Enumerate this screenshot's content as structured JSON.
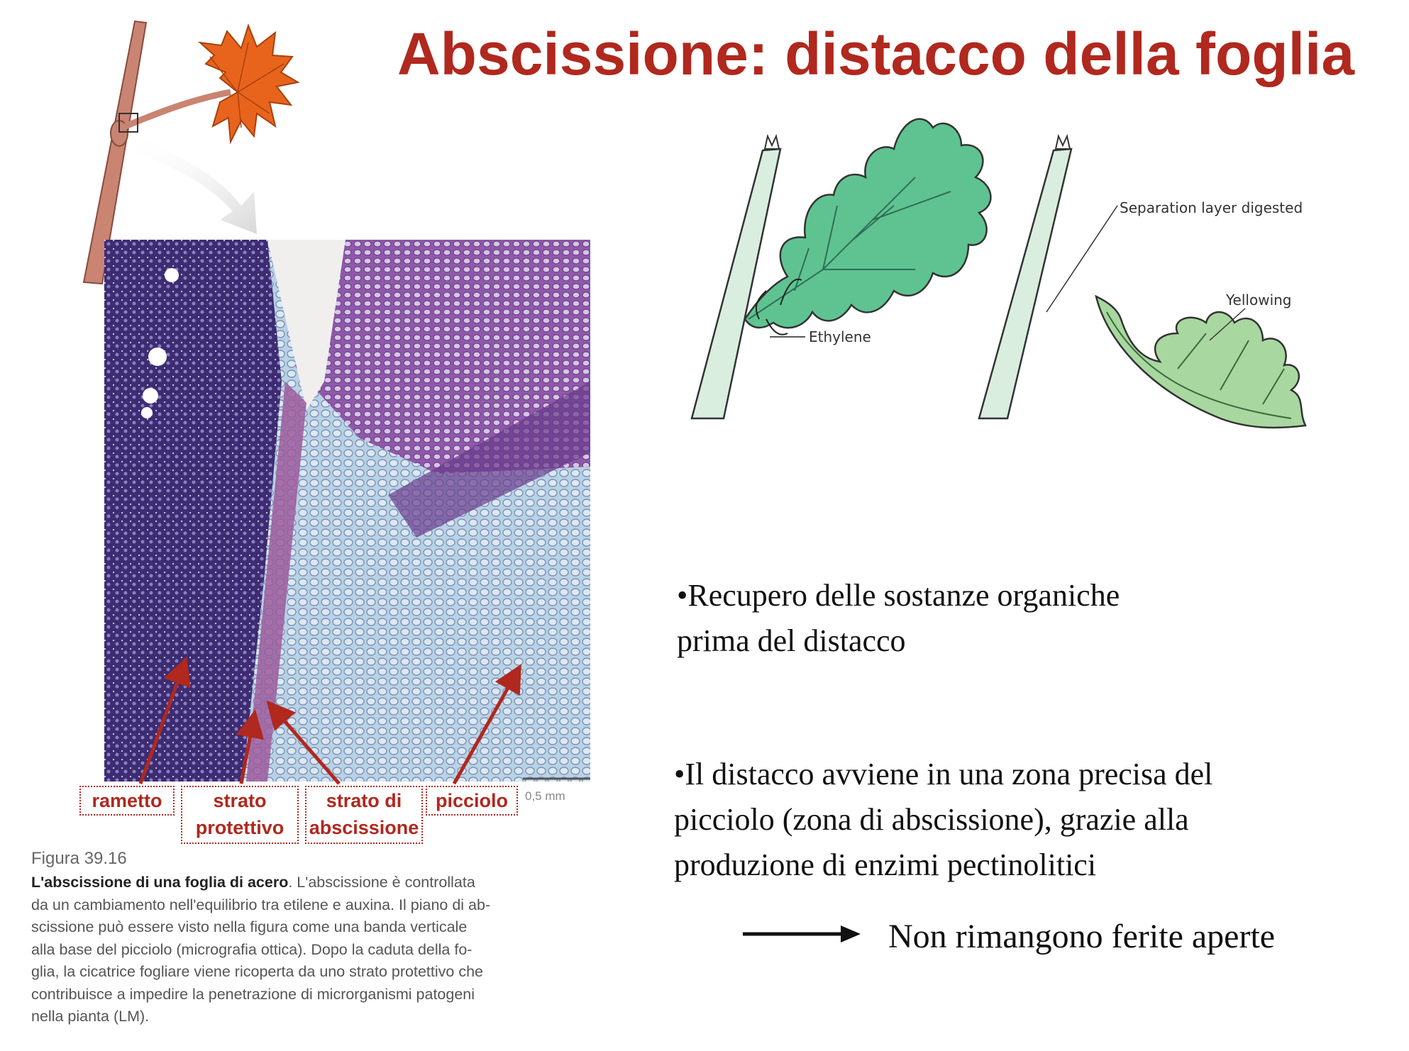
{
  "title": "Abscissione: distacco della foglia",
  "diagram": {
    "ethylene_label": "Ethylene",
    "separation_label": "Separation layer digested",
    "yellowing_label": "Yellowing"
  },
  "micrograph": {
    "labels": {
      "rametto": "rametto",
      "strato_protettivo_1": "strato",
      "strato_protettivo_2": "protettivo",
      "strato_abscissione_1": "strato di",
      "strato_abscissione_2": "abscissione",
      "picciolo": "picciolo"
    },
    "scale": "0,5 mm"
  },
  "caption": {
    "figure_number": "Figura 39.16",
    "bold_lead": "L'abscissione di una foglia di acero",
    "lines": [
      ". L'abscissione è controllata",
      "da un cambiamento nell'equilibrio tra etilene e auxina. Il piano di ab-",
      "scissione può essere visto nella figura come una banda verticale",
      "alla base del picciolo (micrografia ottica). Dopo la caduta della fo-",
      "glia, la cicatrice fogliare viene ricoperta da uno strato protettivo che",
      "contribuisce a impedire la penetrazione di microrganismi patogeni",
      "nella pianta (LM)."
    ]
  },
  "bullets": {
    "b1_line1": "•Recupero delle sostanze organiche",
    "b1_line2": "prima del distacco",
    "b2_line1": "•Il distacco avviene in una zona precisa del",
    "b2_line2": "picciolo (zona di abscissione), grazie alla",
    "b2_line3": "produzione di enzimi pectinolitici"
  },
  "conclusion": "Non rimangono ferite aperte",
  "colors": {
    "title": "#b0281e",
    "leaf_green": "#5fc391",
    "yellowing_green": "#a8d8a0",
    "maple_orange": "#e8641c"
  }
}
